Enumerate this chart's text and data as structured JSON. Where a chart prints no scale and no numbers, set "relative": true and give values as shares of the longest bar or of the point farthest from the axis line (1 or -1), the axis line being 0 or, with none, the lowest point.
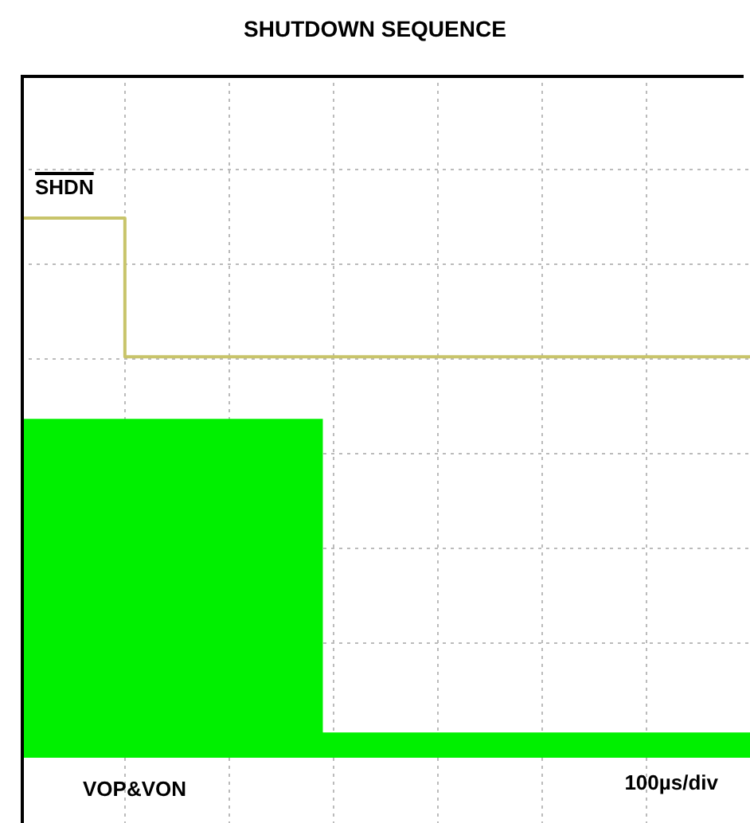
{
  "chart_data": {
    "type": "line",
    "title": "SHUTDOWN SEQUENCE",
    "relative": true,
    "grid": true,
    "legend": false,
    "categories": [
      null,
      null,
      null,
      null,
      null,
      null,
      null,
      null,
      null,
      null,
      null,
      null,
      null,
      null,
      null,
      null,
      null,
      null,
      null,
      null,
      null,
      null,
      null,
      null,
      null,
      null,
      null,
      null,
      null,
      null,
      null,
      null,
      null,
      null,
      null,
      null,
      null,
      null,
      null,
      null,
      null,
      null,
      null,
      null,
      null,
      null,
      null,
      null,
      null,
      null,
      null,
      null,
      null,
      null,
      null,
      null,
      null,
      null,
      null,
      null,
      null,
      null,
      null,
      null,
      null,
      null,
      null,
      null,
      null,
      null,
      null
    ],
    "series": [
      {
        "name": "SHDN",
        "type": "step",
        "color": "#c8c46a",
        "values": [
          1,
          1,
          1,
          1,
          1,
          1,
          1,
          1,
          1,
          1,
          0.743,
          0.743,
          0.743,
          0.743,
          0.743,
          0.743,
          0.743,
          0.743,
          0.743,
          0.743,
          0.743,
          0.743,
          0.743,
          0.743,
          0.743,
          0.743,
          0.743,
          0.743,
          0.743,
          0.743,
          0.743,
          0.743,
          0.743,
          0.743,
          0.743,
          0.743,
          0.743,
          0.743,
          0.743,
          0.743,
          0.743,
          0.743,
          0.743,
          0.743,
          0.743,
          0.743,
          0.743,
          0.743,
          0.743,
          0.743,
          0.743,
          0.743,
          0.743,
          0.743,
          0.743,
          0.743,
          0.743,
          0.743,
          0.743,
          0.743,
          0.743,
          0.743,
          0.743,
          0.743,
          0.743,
          0.743,
          0.743,
          0.743,
          0.743,
          0.743,
          0.743
        ]
      },
      {
        "name": "VOP&VON",
        "type": "area",
        "color": "#00f000",
        "values": [
          0.628,
          0.628,
          0.628,
          0.628,
          0.628,
          0.628,
          0.628,
          0.628,
          0.628,
          0.628,
          0.628,
          0.628,
          0.628,
          0.628,
          0.628,
          0.628,
          0.628,
          0.628,
          0.628,
          0.628,
          0.628,
          0.628,
          0.628,
          0.628,
          0.628,
          0.628,
          0.628,
          0.628,
          0.628,
          0.047,
          0.047,
          0.047,
          0.047,
          0.047,
          0.047,
          0.047,
          0.047,
          0.047,
          0.047,
          0.047,
          0.047,
          0.047,
          0.047,
          0.047,
          0.047,
          0.047,
          0.047,
          0.047,
          0.047,
          0.047,
          0.047,
          0.047,
          0.047,
          0.047,
          0.047,
          0.047,
          0.047,
          0.047,
          0.047,
          0.047,
          0.047,
          0.047,
          0.047,
          0.047,
          0.047,
          0.047,
          0.047,
          0.047,
          0.047,
          0.047,
          0.047
        ]
      }
    ],
    "annotations": [
      "100µs/div"
    ]
  }
}
